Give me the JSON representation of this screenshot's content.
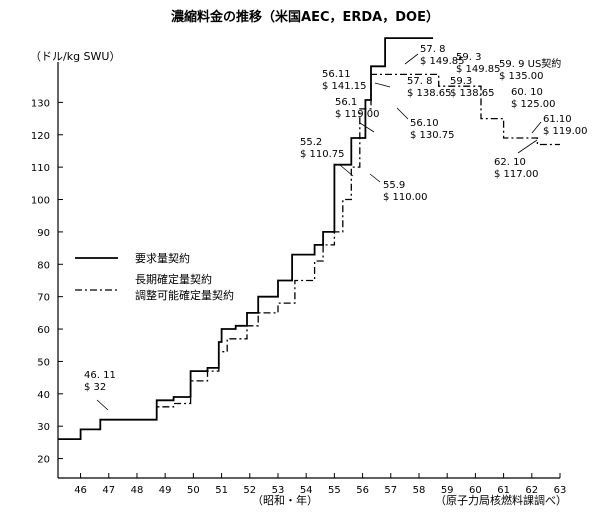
{
  "chart_data": {
    "type": "line",
    "title": "濃縮料金の推移（米国AEC，ERDA，DOE）",
    "ylabel": "（ドル/kg SWU）",
    "xlabel": "（昭和・年）",
    "source": "（原子力局核燃料課調べ）",
    "xlim": [
      45.2,
      63
    ],
    "ylim": [
      14,
      140
    ],
    "xticks": [
      "46",
      "47",
      "48",
      "49",
      "50",
      "51",
      "52",
      "53",
      "54",
      "55",
      "56",
      "57",
      "58",
      "59",
      "60",
      "61",
      "62",
      "63"
    ],
    "yticks": [
      20,
      30,
      40,
      50,
      60,
      70,
      80,
      90,
      100,
      110,
      120,
      130
    ],
    "grid": false,
    "legend_position": "left-middle",
    "series": [
      {
        "name": "要求量契約",
        "style": "solid",
        "steps": [
          [
            45.2,
            26
          ],
          [
            46.0,
            26
          ],
          [
            46.0,
            29
          ],
          [
            46.7,
            29
          ],
          [
            46.7,
            32
          ],
          [
            48.7,
            32
          ],
          [
            48.7,
            38
          ],
          [
            49.3,
            38
          ],
          [
            49.3,
            39
          ],
          [
            49.9,
            39
          ],
          [
            49.9,
            47
          ],
          [
            50.5,
            47
          ],
          [
            50.5,
            48
          ],
          [
            50.9,
            48
          ],
          [
            50.9,
            56
          ],
          [
            51.0,
            56
          ],
          [
            51.0,
            60
          ],
          [
            51.5,
            60
          ],
          [
            51.5,
            61
          ],
          [
            51.9,
            61
          ],
          [
            51.9,
            65
          ],
          [
            52.3,
            65
          ],
          [
            52.3,
            70
          ],
          [
            53.0,
            70
          ],
          [
            53.0,
            75
          ],
          [
            53.5,
            75
          ],
          [
            53.5,
            83
          ],
          [
            54.3,
            83
          ],
          [
            54.3,
            86
          ],
          [
            54.6,
            86
          ],
          [
            54.6,
            90
          ],
          [
            55.0,
            90
          ],
          [
            55.0,
            110.75
          ],
          [
            55.6,
            110.75
          ],
          [
            55.6,
            119
          ],
          [
            56.1,
            119
          ],
          [
            56.1,
            130.75
          ],
          [
            56.3,
            130.75
          ],
          [
            56.3,
            141.15
          ],
          [
            56.8,
            141.15
          ],
          [
            56.8,
            149.85
          ],
          [
            58.5,
            149.85
          ]
        ]
      },
      {
        "name": "長期確定量契約 調整可能確定量契約",
        "style": "dashdot",
        "steps": [
          [
            46.7,
            32
          ],
          [
            48.7,
            32
          ],
          [
            48.7,
            36
          ],
          [
            49.3,
            36
          ],
          [
            49.3,
            37
          ],
          [
            49.9,
            37
          ],
          [
            49.9,
            44
          ],
          [
            50.5,
            44
          ],
          [
            50.5,
            47
          ],
          [
            50.9,
            47
          ],
          [
            50.9,
            53
          ],
          [
            51.2,
            53
          ],
          [
            51.2,
            57
          ],
          [
            51.9,
            57
          ],
          [
            51.9,
            61
          ],
          [
            52.3,
            61
          ],
          [
            52.3,
            65
          ],
          [
            53.0,
            65
          ],
          [
            53.0,
            68
          ],
          [
            53.6,
            68
          ],
          [
            53.6,
            75
          ],
          [
            54.3,
            75
          ],
          [
            54.3,
            81
          ],
          [
            54.6,
            81
          ],
          [
            54.6,
            86
          ],
          [
            55.0,
            86
          ],
          [
            55.0,
            90
          ],
          [
            55.3,
            90
          ],
          [
            55.3,
            100
          ],
          [
            55.6,
            100
          ],
          [
            55.6,
            110
          ],
          [
            55.9,
            110
          ],
          [
            55.9,
            128
          ],
          [
            56.3,
            128
          ],
          [
            56.3,
            138.65
          ],
          [
            58.7,
            138.65
          ],
          [
            58.7,
            135
          ],
          [
            60.2,
            135
          ],
          [
            60.2,
            125
          ],
          [
            61.0,
            125
          ],
          [
            61.0,
            119
          ],
          [
            62.2,
            119
          ],
          [
            62.2,
            117
          ],
          [
            63.0,
            117
          ]
        ]
      }
    ],
    "annotations": [
      {
        "date": "46. 11",
        "price": "$ 32"
      },
      {
        "date": "55.2",
        "price": "$ 110.75"
      },
      {
        "date": "55.9",
        "price": "$ 110.00"
      },
      {
        "date": "56.1",
        "price": "$ 119.00"
      },
      {
        "date": "56.10",
        "price": "$ 130.75"
      },
      {
        "date": "56.11",
        "price": "$ 141.15"
      },
      {
        "date": "57. 8",
        "price": "$ 149.85"
      },
      {
        "date": "57. 8",
        "price": "$ 138.65"
      },
      {
        "date": "59. 3",
        "price": "$ 149.85"
      },
      {
        "date": "59.3",
        "price": "$ 138.65"
      },
      {
        "date": "59. 9 US契約",
        "price": "$ 135.00"
      },
      {
        "date": "60. 10",
        "price": "$ 125.00"
      },
      {
        "date": "61.10",
        "price": "$ 119.00"
      },
      {
        "date": "62. 10",
        "price": "$ 117.00"
      }
    ],
    "legend": [
      {
        "label": "要求量契約",
        "style": "solid"
      },
      {
        "label": "長期確定量契約",
        "style": "dashdot"
      },
      {
        "label": "調整可能確定量契約",
        "style": "dashdot"
      }
    ]
  }
}
